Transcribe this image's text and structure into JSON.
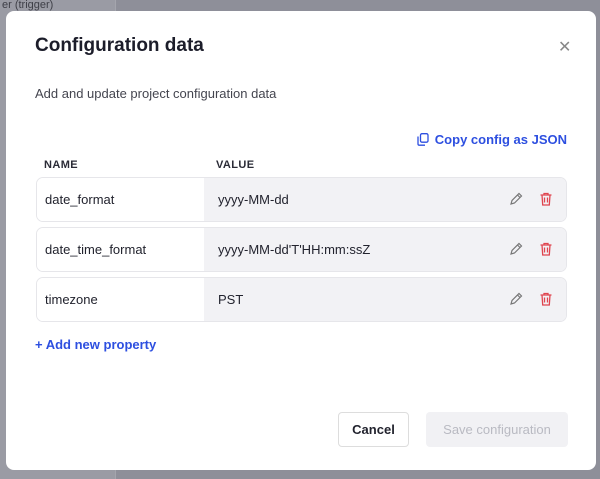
{
  "background": {
    "snippet": "er (trigger)"
  },
  "modal": {
    "title": "Configuration data",
    "subtitle": "Add and update project configuration data",
    "copy_label": "Copy config as JSON",
    "columns": {
      "name": "NAME",
      "value": "VALUE"
    },
    "rows": [
      {
        "name": "date_format",
        "value": "yyyy-MM-dd"
      },
      {
        "name": "date_time_format",
        "value": "yyyy-MM-dd'T'HH:mm:ssZ"
      },
      {
        "name": "timezone",
        "value": "PST"
      }
    ],
    "add_label": "+ Add new property",
    "cancel_label": "Cancel",
    "save_label": "Save configuration"
  },
  "colors": {
    "accent": "#2d4fe0",
    "danger": "#e0454f"
  }
}
